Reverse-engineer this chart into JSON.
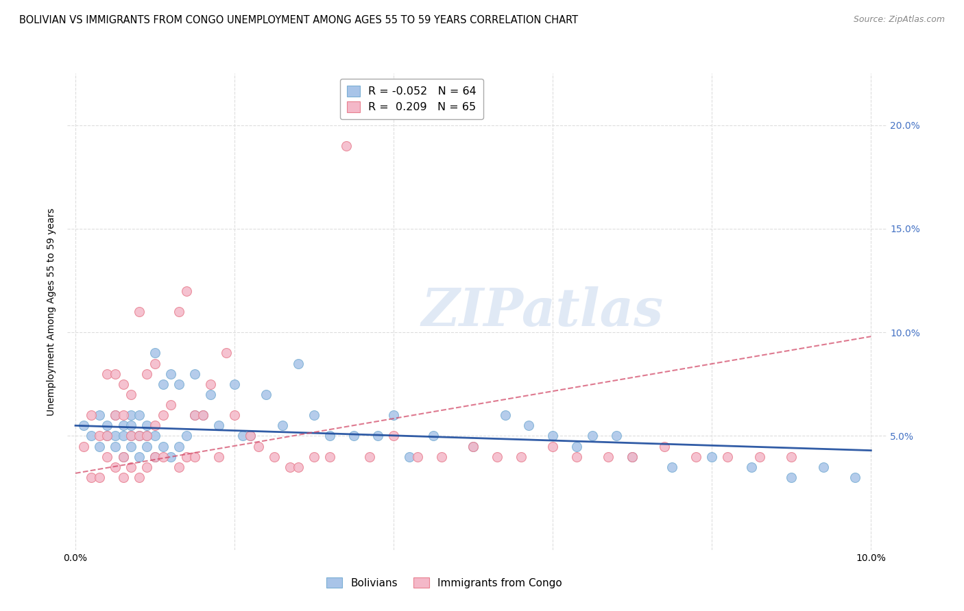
{
  "title": "BOLIVIAN VS IMMIGRANTS FROM CONGO UNEMPLOYMENT AMONG AGES 55 TO 59 YEARS CORRELATION CHART",
  "source": "Source: ZipAtlas.com",
  "ylabel": "Unemployment Among Ages 55 to 59 years",
  "watermark": "ZIPatlas",
  "bolivians_color": "#a8c4e8",
  "bolivians_edge": "#7bafd4",
  "congo_color": "#f4b8c8",
  "congo_edge": "#e88090",
  "trendline_bolivians_color": "#1a4a9c",
  "trendline_congo_color": "#d04060",
  "xlim": [
    -0.001,
    0.102
  ],
  "ylim": [
    -0.005,
    0.225
  ],
  "yticks": [
    0.05,
    0.1,
    0.15,
    0.2
  ],
  "ytick_labels_right": [
    "5.0%",
    "10.0%",
    "15.0%",
    "20.0%"
  ],
  "xticks": [
    0.0,
    0.02,
    0.04,
    0.06,
    0.08,
    0.1
  ],
  "background_color": "#ffffff",
  "grid_color": "#dddddd",
  "title_fontsize": 10.5,
  "source_fontsize": 9,
  "axis_label_fontsize": 10,
  "tick_fontsize": 10,
  "legend_R_blue": "R = -0.052",
  "legend_N_blue": "N = 64",
  "legend_R_pink": "R =  0.209",
  "legend_N_pink": "N = 65",
  "bolivians_x": [
    0.001,
    0.002,
    0.003,
    0.003,
    0.004,
    0.004,
    0.005,
    0.005,
    0.005,
    0.006,
    0.006,
    0.006,
    0.007,
    0.007,
    0.007,
    0.007,
    0.008,
    0.008,
    0.008,
    0.009,
    0.009,
    0.009,
    0.01,
    0.01,
    0.01,
    0.011,
    0.011,
    0.012,
    0.012,
    0.013,
    0.013,
    0.014,
    0.015,
    0.015,
    0.016,
    0.017,
    0.018,
    0.02,
    0.021,
    0.022,
    0.024,
    0.026,
    0.028,
    0.03,
    0.032,
    0.035,
    0.038,
    0.04,
    0.042,
    0.045,
    0.05,
    0.054,
    0.057,
    0.06,
    0.063,
    0.065,
    0.068,
    0.07,
    0.075,
    0.08,
    0.085,
    0.09,
    0.094,
    0.098
  ],
  "bolivians_y": [
    0.055,
    0.05,
    0.045,
    0.06,
    0.05,
    0.055,
    0.045,
    0.05,
    0.06,
    0.04,
    0.05,
    0.055,
    0.045,
    0.05,
    0.055,
    0.06,
    0.04,
    0.05,
    0.06,
    0.045,
    0.05,
    0.055,
    0.04,
    0.05,
    0.09,
    0.045,
    0.075,
    0.04,
    0.08,
    0.045,
    0.075,
    0.05,
    0.06,
    0.08,
    0.06,
    0.07,
    0.055,
    0.075,
    0.05,
    0.05,
    0.07,
    0.055,
    0.085,
    0.06,
    0.05,
    0.05,
    0.05,
    0.06,
    0.04,
    0.05,
    0.045,
    0.06,
    0.055,
    0.05,
    0.045,
    0.05,
    0.05,
    0.04,
    0.035,
    0.04,
    0.035,
    0.03,
    0.035,
    0.03
  ],
  "congo_x": [
    0.001,
    0.002,
    0.002,
    0.003,
    0.003,
    0.004,
    0.004,
    0.004,
    0.005,
    0.005,
    0.005,
    0.006,
    0.006,
    0.006,
    0.006,
    0.007,
    0.007,
    0.007,
    0.008,
    0.008,
    0.008,
    0.009,
    0.009,
    0.009,
    0.01,
    0.01,
    0.01,
    0.011,
    0.011,
    0.012,
    0.013,
    0.013,
    0.014,
    0.014,
    0.015,
    0.015,
    0.016,
    0.017,
    0.018,
    0.019,
    0.02,
    0.022,
    0.023,
    0.025,
    0.027,
    0.028,
    0.03,
    0.032,
    0.034,
    0.037,
    0.04,
    0.043,
    0.046,
    0.05,
    0.053,
    0.056,
    0.06,
    0.063,
    0.067,
    0.07,
    0.074,
    0.078,
    0.082,
    0.086,
    0.09
  ],
  "congo_y": [
    0.045,
    0.06,
    0.03,
    0.05,
    0.03,
    0.04,
    0.05,
    0.08,
    0.035,
    0.06,
    0.08,
    0.03,
    0.04,
    0.06,
    0.075,
    0.035,
    0.05,
    0.07,
    0.03,
    0.05,
    0.11,
    0.035,
    0.05,
    0.08,
    0.04,
    0.055,
    0.085,
    0.04,
    0.06,
    0.065,
    0.035,
    0.11,
    0.04,
    0.12,
    0.04,
    0.06,
    0.06,
    0.075,
    0.04,
    0.09,
    0.06,
    0.05,
    0.045,
    0.04,
    0.035,
    0.035,
    0.04,
    0.04,
    0.19,
    0.04,
    0.05,
    0.04,
    0.04,
    0.045,
    0.04,
    0.04,
    0.045,
    0.04,
    0.04,
    0.04,
    0.045,
    0.04,
    0.04,
    0.04,
    0.04
  ],
  "trendline_b_x0": 0.0,
  "trendline_b_y0": 0.055,
  "trendline_b_x1": 0.1,
  "trendline_b_y1": 0.043,
  "trendline_c_x0": 0.0,
  "trendline_c_y0": 0.032,
  "trendline_c_x1": 0.1,
  "trendline_c_y1": 0.098
}
